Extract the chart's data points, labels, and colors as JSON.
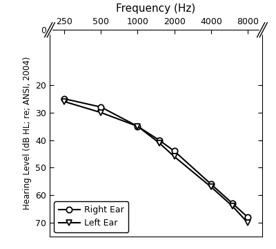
{
  "frequencies": [
    250,
    500,
    1000,
    1500,
    2000,
    4000,
    6000,
    8000
  ],
  "right_ear": [
    25,
    28,
    35,
    40,
    44,
    56,
    63,
    68
  ],
  "left_ear": [
    26,
    30,
    35,
    41,
    46,
    57,
    64,
    70
  ],
  "xtick_labels": [
    "250",
    "500",
    "1000",
    "2000",
    "4000",
    "8000"
  ],
  "xtick_freqs": [
    250,
    500,
    1000,
    2000,
    4000,
    8000
  ],
  "ylim_bottom": 75,
  "ylim_top": 0,
  "yticks": [
    0,
    20,
    30,
    40,
    50,
    60,
    70
  ],
  "xlim_left": 190,
  "xlim_right": 10500,
  "xlabel_top": "Frequency (Hz)",
  "ylabel": "Hearing Level (dB HL; re; ANSI, 2004)",
  "legend_right": "Right Ear",
  "legend_left": "Left Ear",
  "line_color": "#000000",
  "bg_color": "#ffffff",
  "marker_right": "o",
  "marker_left": "v",
  "marker_size": 6,
  "line_width": 1.5,
  "tick_fontsize": 9,
  "xlabel_fontsize": 11,
  "ylabel_fontsize": 8.5,
  "legend_fontsize": 9
}
